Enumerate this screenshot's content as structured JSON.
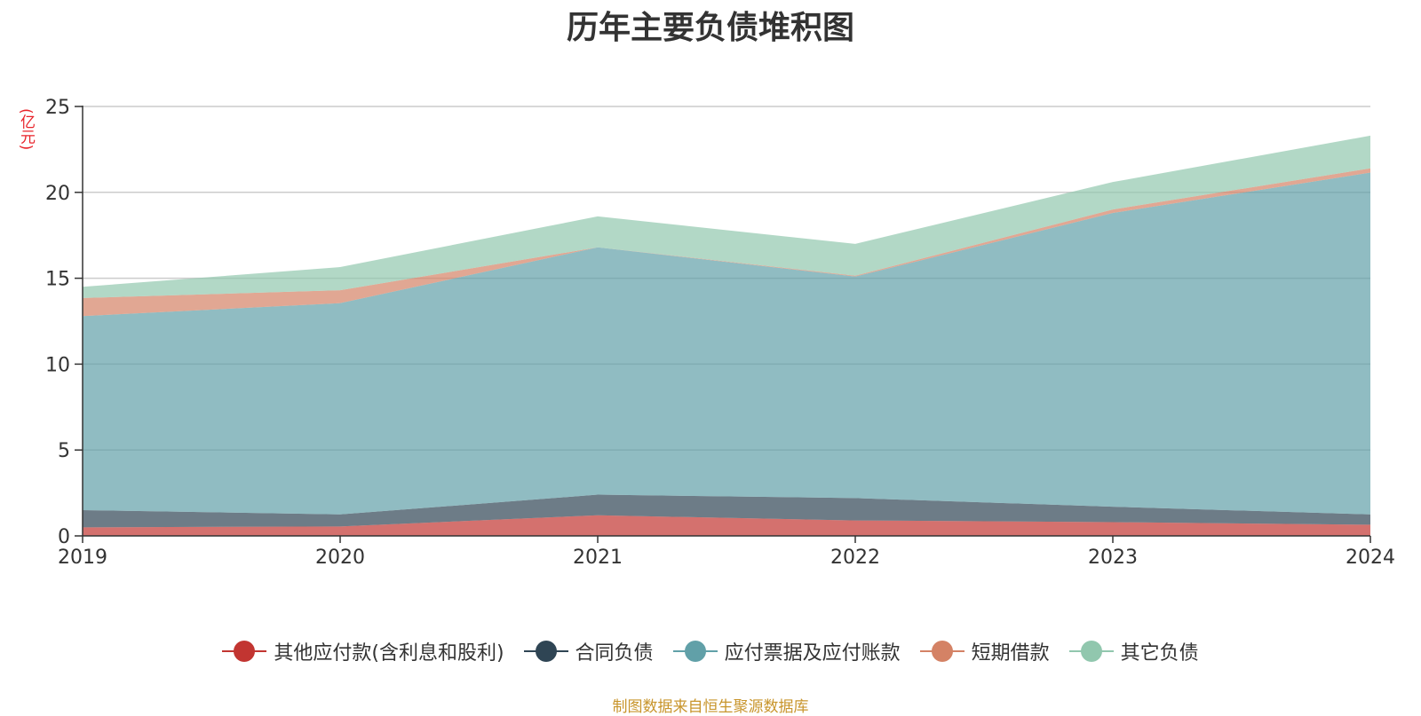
{
  "chart_data": {
    "type": "area",
    "stacked": true,
    "title": "历年主要负债堆积图",
    "ylabel": "(亿元)",
    "x": [
      "2019",
      "2020",
      "2021",
      "2022",
      "2023",
      "2024"
    ],
    "ylim": [
      0,
      25
    ],
    "yticks": [
      0,
      5,
      10,
      15,
      20,
      25
    ],
    "grid": true,
    "legend_position": "bottom",
    "series": [
      {
        "name": "其他应付款(含利息和股利)",
        "color": "#c23531",
        "values": [
          0.5,
          0.55,
          1.2,
          0.9,
          0.8,
          0.65
        ]
      },
      {
        "name": "合同负债",
        "color": "#2f4554",
        "values": [
          1.0,
          0.7,
          1.2,
          1.3,
          0.9,
          0.6
        ]
      },
      {
        "name": "应付票据及应付账款",
        "color": "#61a0a8",
        "values": [
          11.3,
          12.3,
          14.4,
          12.9,
          17.1,
          19.9
        ]
      },
      {
        "name": "短期借款",
        "color": "#d48265",
        "values": [
          1.05,
          0.75,
          0.0,
          0.05,
          0.2,
          0.25
        ]
      },
      {
        "name": "其它负债",
        "color": "#91c7ae",
        "values": [
          0.65,
          1.35,
          1.8,
          1.85,
          1.6,
          1.9
        ]
      }
    ]
  },
  "source_note": "制图数据来自恒生聚源数据库"
}
